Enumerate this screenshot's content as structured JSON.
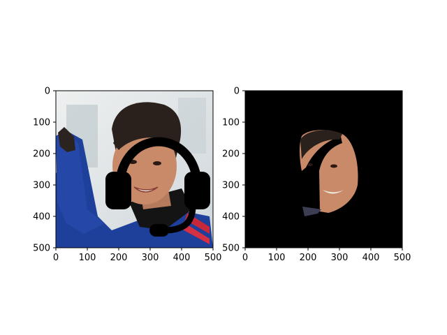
{
  "figure": {
    "panels": [
      {
        "id": "left",
        "image": "photo of smiling woman with black headset icon overlay",
        "xticks": [
          "0",
          "100",
          "200",
          "300",
          "400",
          "500"
        ],
        "yticks": [
          "0",
          "100",
          "200",
          "300",
          "400",
          "500"
        ]
      },
      {
        "id": "right",
        "image": "segmentation mask showing only face/hair region on black background",
        "xticks": [
          "0",
          "100",
          "200",
          "300",
          "400",
          "500"
        ],
        "yticks": [
          "0",
          "100",
          "200",
          "300",
          "400",
          "500"
        ]
      }
    ],
    "colors": {
      "background": "#ffffff",
      "mask": "#000000",
      "jacket": "#1e3f9a",
      "skin": "#c98a6a",
      "hair": "#2a211c",
      "photo_bg": "#dfe4e7"
    }
  }
}
